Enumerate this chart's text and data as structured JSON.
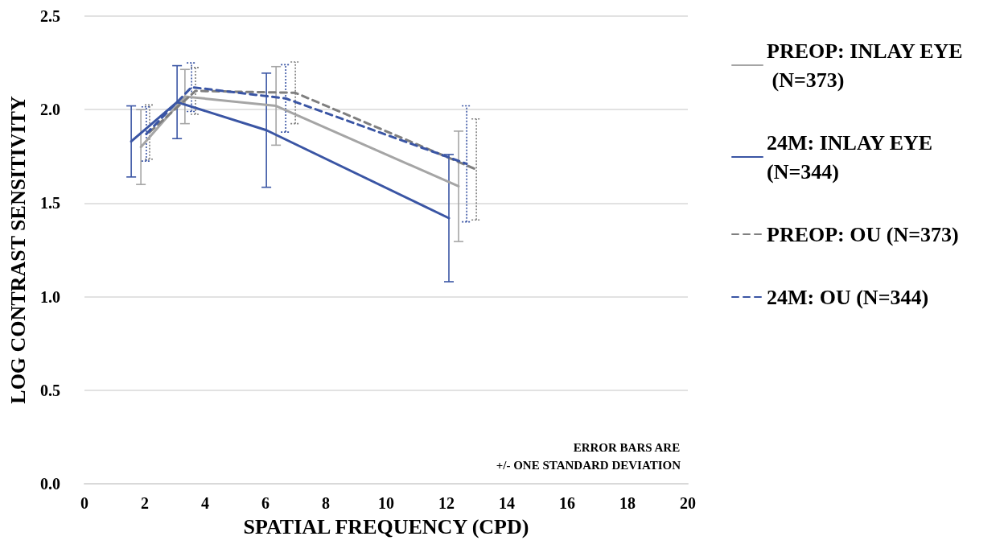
{
  "chart_data": {
    "type": "line",
    "xlabel": "SPATIAL FREQUENCY (CPD)",
    "ylabel": "LOG CONTRAST SENSITIVITY",
    "xlim": [
      0,
      20
    ],
    "xticks": [
      0,
      2,
      4,
      6,
      8,
      10,
      12,
      14,
      16,
      18,
      20
    ],
    "ylim": [
      0,
      2.5
    ],
    "yticks": [
      {
        "value": 0,
        "label": "0.0"
      },
      0.5,
      {
        "value": 1,
        "label": "1.0"
      },
      1.5,
      {
        "value": 2,
        "label": "2.0"
      },
      2.5
    ],
    "grid": "y",
    "legend": "right",
    "marker": "none",
    "annotations": [
      "ERROR BARS ARE",
      "+/- ONE STANDARD DEVIATION"
    ],
    "series": [
      {
        "name": "PREOP: INLAY EYE (N=373)",
        "color": "#a5a5a5",
        "line_style": "solid",
        "x": [
          1.87,
          3.33,
          6.35,
          12.4
        ],
        "values": [
          1.8,
          2.07,
          2.02,
          1.59
        ],
        "errors": [
          0.2,
          0.145,
          0.21,
          0.295
        ]
      },
      {
        "name": "24M: INLAY EYE (N=344)",
        "color": "#3a55a4",
        "line_style": "solid",
        "x": [
          1.55,
          3.07,
          6.03,
          12.08
        ],
        "values": [
          1.83,
          2.04,
          1.89,
          1.42
        ],
        "errors": [
          0.19,
          0.195,
          0.305,
          0.34
        ]
      },
      {
        "name": "PREOP: OU (N=373)",
        "color": "#7f7f7f",
        "line_style": "dashed",
        "x": [
          2.16,
          3.68,
          6.99,
          12.99
        ],
        "values": [
          1.88,
          2.1,
          2.09,
          1.68
        ],
        "errors": [
          0.145,
          0.125,
          0.165,
          0.27
        ]
      },
      {
        "name": "24M: OU (N=344)",
        "color": "#3a55a4",
        "line_style": "dashed",
        "x": [
          2.05,
          3.55,
          6.67,
          12.67
        ],
        "values": [
          1.87,
          2.12,
          2.06,
          1.71
        ],
        "errors": [
          0.145,
          0.13,
          0.18,
          0.31
        ]
      }
    ]
  }
}
